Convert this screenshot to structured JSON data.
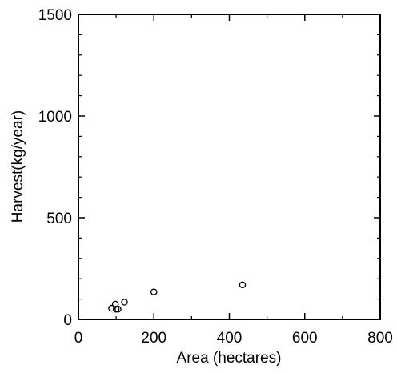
{
  "chart_data": {
    "type": "scatter",
    "title": "",
    "xlabel": "Area (hectares)",
    "ylabel": "Harvest(kg/year)",
    "xlim": [
      0,
      800
    ],
    "ylim": [
      0,
      1500
    ],
    "xticks": [
      0,
      200,
      400,
      600,
      800
    ],
    "yticks": [
      0,
      500,
      1000,
      1500
    ],
    "xtick_labels": [
      "0",
      "200",
      "400",
      "600",
      "800"
    ],
    "ytick_labels": [
      "0",
      "500",
      "1000",
      "1500"
    ],
    "grid": false,
    "legend": "none",
    "marker": "open-circle",
    "series": [
      {
        "points": [
          {
            "x": 88,
            "y": 55
          },
          {
            "x": 98,
            "y": 75
          },
          {
            "x": 100,
            "y": 50
          },
          {
            "x": 105,
            "y": 50
          },
          {
            "x": 122,
            "y": 85
          },
          {
            "x": 200,
            "y": 135
          },
          {
            "x": 435,
            "y": 170
          }
        ]
      }
    ]
  }
}
